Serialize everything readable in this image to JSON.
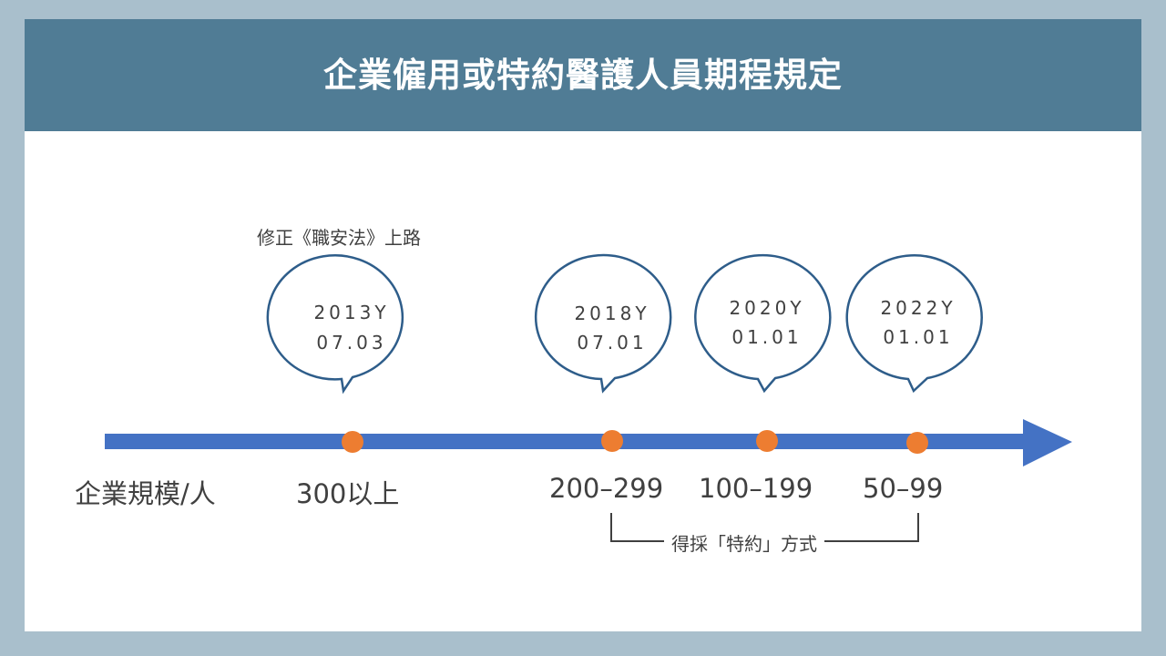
{
  "header": {
    "title": "企業僱用或特約醫護人員期程規定"
  },
  "annotation": {
    "text": "修正《職安法》上路"
  },
  "axis": {
    "label": "企業規模/人"
  },
  "milestones": [
    {
      "year": "2013Y",
      "date": "07.03",
      "scale": "300以上"
    },
    {
      "year": "2018Y",
      "date": "07.01",
      "scale": "200–299"
    },
    {
      "year": "2020Y",
      "date": "01.01",
      "scale": "100–199"
    },
    {
      "year": "2022Y",
      "date": "01.01",
      "scale": "50–99"
    }
  ],
  "bracket": {
    "text": "得採「特約」方式"
  },
  "colors": {
    "background": "#a9bfcc",
    "header": "#507c95",
    "arrow": "#4472c4",
    "dot": "#ed7d31",
    "bubble_stroke": "#2e5d8a",
    "text": "#404040"
  }
}
